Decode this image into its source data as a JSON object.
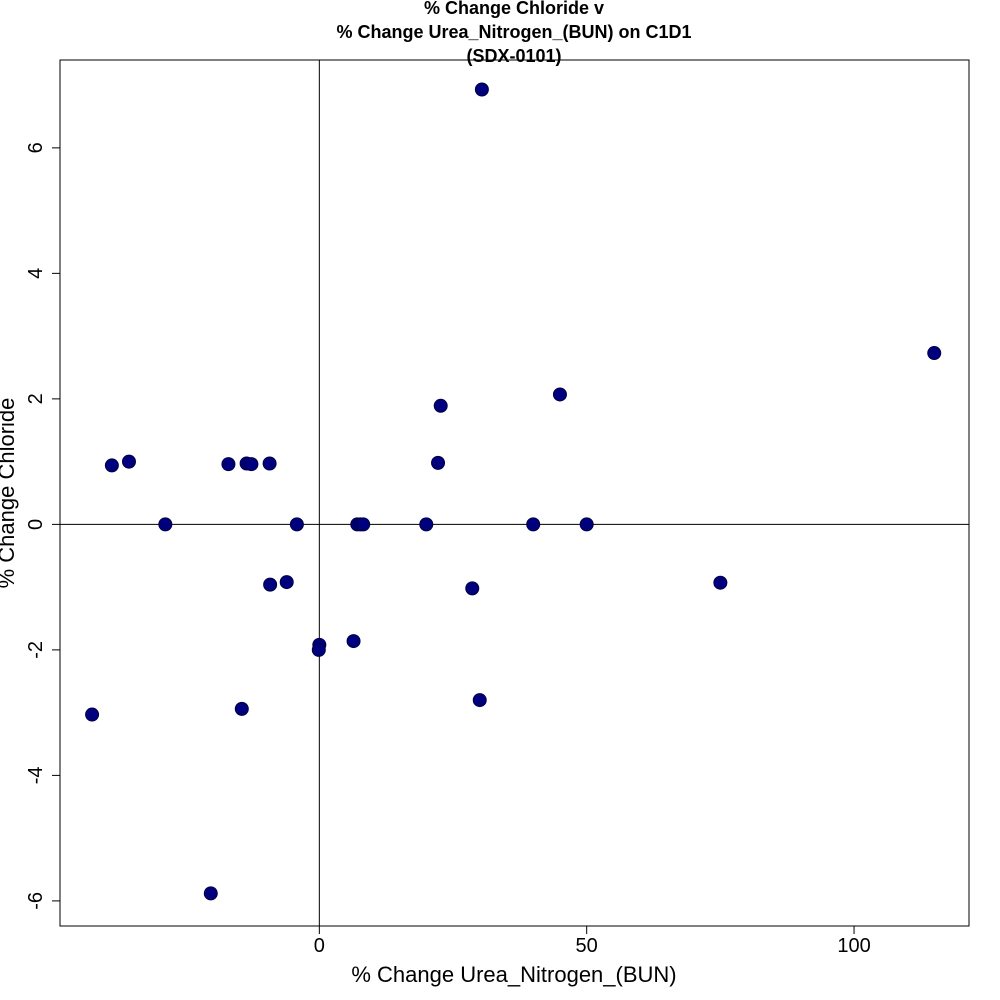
{
  "chart_data": {
    "type": "scatter",
    "title": [
      "% Change Chloride v",
      "% Change Urea_Nitrogen_(BUN) on C1D1",
      "(SDX-0101)"
    ],
    "xlabel": "% Change Urea_Nitrogen_(BUN)",
    "ylabel": "% Change Chloride",
    "xlim": [
      -48.5,
      121.5
    ],
    "ylim": [
      -6.4,
      7.4
    ],
    "xticks": [
      0,
      50,
      100
    ],
    "yticks": [
      -6,
      -4,
      -2,
      0,
      2,
      4,
      6
    ],
    "reference_lines": {
      "x": 0,
      "y": 0
    },
    "marker_color": "#00007F",
    "grid": false,
    "points": [
      {
        "x": -42.5,
        "y": -3.03
      },
      {
        "x": -38.8,
        "y": 0.94
      },
      {
        "x": -35.6,
        "y": 1.0
      },
      {
        "x": -28.8,
        "y": 0.0
      },
      {
        "x": -20.3,
        "y": -5.88
      },
      {
        "x": -17.0,
        "y": 0.96
      },
      {
        "x": -14.5,
        "y": -2.94
      },
      {
        "x": -13.6,
        "y": 0.97
      },
      {
        "x": -12.7,
        "y": 0.96
      },
      {
        "x": -9.3,
        "y": 0.97
      },
      {
        "x": -9.2,
        "y": -0.96
      },
      {
        "x": -6.1,
        "y": -0.92
      },
      {
        "x": -4.2,
        "y": 0.0
      },
      {
        "x": 0.0,
        "y": -1.92
      },
      {
        "x": -0.1,
        "y": -2.0
      },
      {
        "x": 6.4,
        "y": -1.86
      },
      {
        "x": 7.1,
        "y": 0.0
      },
      {
        "x": 7.7,
        "y": 0.0
      },
      {
        "x": 8.2,
        "y": 0.0
      },
      {
        "x": 20.0,
        "y": 0.0
      },
      {
        "x": 22.2,
        "y": 0.98
      },
      {
        "x": 22.7,
        "y": 1.89
      },
      {
        "x": 28.6,
        "y": -1.02
      },
      {
        "x": 30.0,
        "y": -2.8
      },
      {
        "x": 30.4,
        "y": 6.93
      },
      {
        "x": 40.0,
        "y": 0.0
      },
      {
        "x": 45.0,
        "y": 2.07
      },
      {
        "x": 50.0,
        "y": 0.0
      },
      {
        "x": 75.0,
        "y": -0.93
      },
      {
        "x": 115.0,
        "y": 2.73
      }
    ]
  }
}
